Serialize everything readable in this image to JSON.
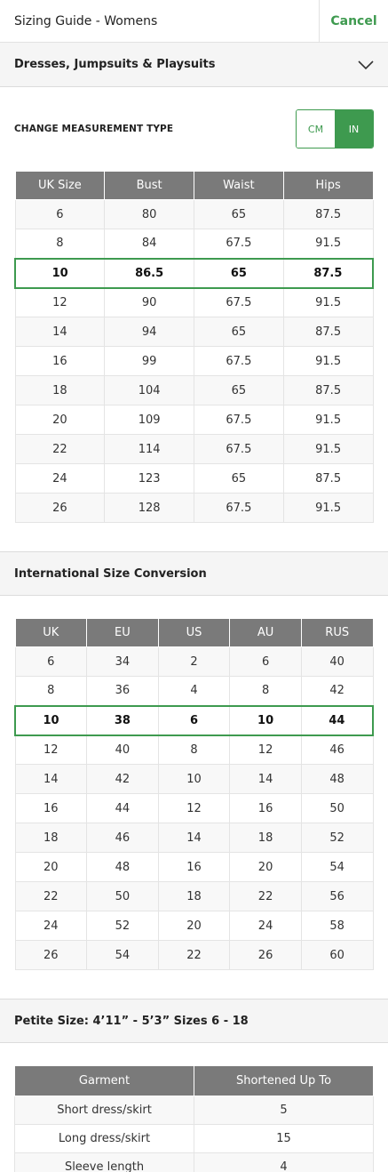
{
  "header": {
    "title": "Sizing Guide - Womens",
    "cancel_label": "Cancel"
  },
  "category": {
    "selected": "Dresses, Jumpsuits & Playsuits"
  },
  "measurement": {
    "label": "CHANGE MEASUREMENT TYPE",
    "options": [
      "CM",
      "IN"
    ],
    "selected": "IN"
  },
  "sizing_table": {
    "headers": [
      "UK Size",
      "Bust",
      "Waist",
      "Hips"
    ],
    "rows": [
      [
        "6",
        "80",
        "65",
        "87.5"
      ],
      [
        "8",
        "84",
        "67.5",
        "91.5"
      ],
      [
        "10",
        "86.5",
        "65",
        "87.5"
      ],
      [
        "12",
        "90",
        "67.5",
        "91.5"
      ],
      [
        "14",
        "94",
        "65",
        "87.5"
      ],
      [
        "16",
        "99",
        "67.5",
        "91.5"
      ],
      [
        "18",
        "104",
        "65",
        "87.5"
      ],
      [
        "20",
        "109",
        "67.5",
        "91.5"
      ],
      [
        "22",
        "114",
        "67.5",
        "91.5"
      ],
      [
        "24",
        "123",
        "65",
        "87.5"
      ],
      [
        "26",
        "128",
        "67.5",
        "91.5"
      ]
    ],
    "highlighted_row": 2
  },
  "international": {
    "title": "International Size Conversion",
    "headers": [
      "UK",
      "EU",
      "US",
      "AU",
      "RUS"
    ],
    "rows": [
      [
        "6",
        "34",
        "2",
        "6",
        "40"
      ],
      [
        "8",
        "36",
        "4",
        "8",
        "42"
      ],
      [
        "10",
        "38",
        "6",
        "10",
        "44"
      ],
      [
        "12",
        "40",
        "8",
        "12",
        "46"
      ],
      [
        "14",
        "42",
        "10",
        "14",
        "48"
      ],
      [
        "16",
        "44",
        "12",
        "16",
        "50"
      ],
      [
        "18",
        "46",
        "14",
        "18",
        "52"
      ],
      [
        "20",
        "48",
        "16",
        "20",
        "54"
      ],
      [
        "22",
        "50",
        "18",
        "22",
        "56"
      ],
      [
        "24",
        "52",
        "20",
        "24",
        "58"
      ],
      [
        "26",
        "54",
        "22",
        "26",
        "60"
      ]
    ],
    "highlighted_row": 2
  },
  "petite": {
    "title": "Petite Size: 4’11” - 5’3” Sizes 6 - 18",
    "headers": [
      "Garment",
      "Shortened Up To"
    ],
    "rows": [
      [
        "Short dress/skirt",
        "5"
      ],
      [
        "Long dress/skirt",
        "15"
      ],
      [
        "Sleeve length",
        "4"
      ]
    ]
  },
  "icons": {
    "dropdown": "chevron-down-icon"
  },
  "colors": {
    "accent": "#3e9a4f",
    "table_header": "#7a7a7a"
  }
}
